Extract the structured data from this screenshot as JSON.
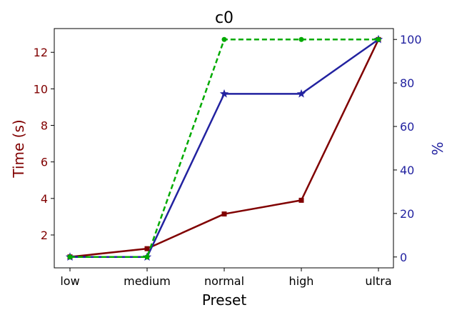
{
  "chart_data": {
    "type": "line",
    "title": "c0",
    "xlabel": "Preset",
    "ylabel_left": "Time (s)",
    "ylabel_right": "%",
    "categories": [
      "low",
      "medium",
      "normal",
      "high",
      "ultra"
    ],
    "y_left": {
      "lim": [
        0.2,
        13.3
      ],
      "ticks": [
        2,
        4,
        6,
        8,
        10,
        12
      ]
    },
    "y_right": {
      "lim": [
        -5,
        105
      ],
      "ticks": [
        0,
        20,
        40,
        60,
        80,
        100
      ]
    },
    "grid": false,
    "series": [
      {
        "axis": "left",
        "values": [
          0.8,
          1.25,
          3.15,
          3.9,
          12.7
        ],
        "color": "#800000",
        "marker": "square",
        "style": "solid"
      },
      {
        "axis": "right",
        "values": [
          0,
          0,
          75,
          75,
          100
        ],
        "color": "#2222a0",
        "marker": "star",
        "style": "solid"
      },
      {
        "axis": "right",
        "values": [
          0,
          0,
          100,
          100,
          100
        ],
        "color": "#00aa00",
        "marker": "circle",
        "style": "dashed"
      }
    ],
    "left_axis_color": "#800000",
    "right_axis_color": "#2222a0"
  }
}
